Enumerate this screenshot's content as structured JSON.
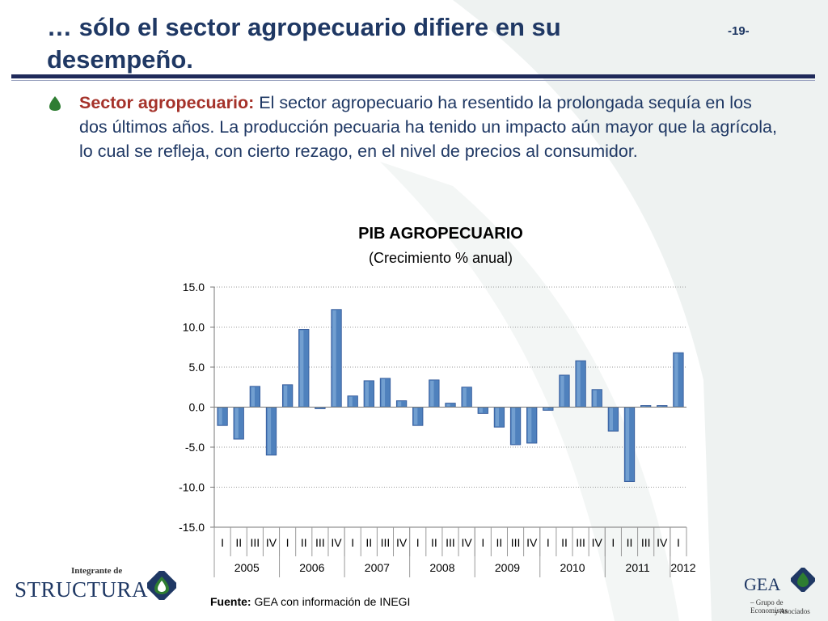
{
  "slide": {
    "title": "… sólo el sector agropecuario difiere en su desempeño.",
    "page_number": "-19-"
  },
  "bullet": {
    "lead": "Sector agropecuario:",
    "text": " El sector agropecuario ha resentido la prolongada sequía en los dos últimos años. La producción pecuaria ha tenido un impacto aún mayor que la agrícola, lo cual se refleja, con cierto rezago, en el nivel de precios al consumidor."
  },
  "source": {
    "label": "Fuente:",
    "text": " GEA con información de INEGI"
  },
  "logos": {
    "left_top": "Integrante de",
    "left_brand": "STRUCTURA",
    "right_brand": "GEA",
    "right_sub1": "– Grupo de Economistas",
    "right_sub2": "y Asociados"
  },
  "colors": {
    "bar_fill": "#4f81bd",
    "bar_highlight": "#9dc3e6",
    "title_text": "#1f3864",
    "accent_red": "#a5322a",
    "logo_green": "#2e7d32"
  },
  "chart_data": {
    "type": "bar",
    "title": "PIB AGROPECUARIO",
    "subtitle": "(Crecimiento % anual)",
    "ylim": [
      -15,
      15
    ],
    "yticks": [
      "15.0",
      "10.0",
      "5.0",
      "0.0",
      "-5.0",
      "-10.0",
      "-15.0"
    ],
    "grid": true,
    "categories": [
      "I",
      "II",
      "III",
      "IV",
      "I",
      "II",
      "III",
      "IV",
      "I",
      "II",
      "III",
      "IV",
      "I",
      "II",
      "III",
      "IV",
      "I",
      "II",
      "III",
      "IV",
      "I",
      "II",
      "III",
      "IV",
      "I",
      "II",
      "III",
      "IV",
      "I"
    ],
    "years": [
      "2005",
      "2006",
      "2007",
      "2008",
      "2009",
      "2010",
      "2011",
      "2012"
    ],
    "values": [
      -2.3,
      -4.0,
      2.6,
      -6.0,
      2.8,
      9.7,
      -0.2,
      12.2,
      1.4,
      3.3,
      3.6,
      0.8,
      -2.3,
      3.4,
      0.5,
      2.5,
      -0.8,
      -2.5,
      -4.7,
      -4.5,
      -0.4,
      4.0,
      5.8,
      2.2,
      -3.0,
      -9.3,
      0.2,
      0.2,
      6.8
    ]
  }
}
